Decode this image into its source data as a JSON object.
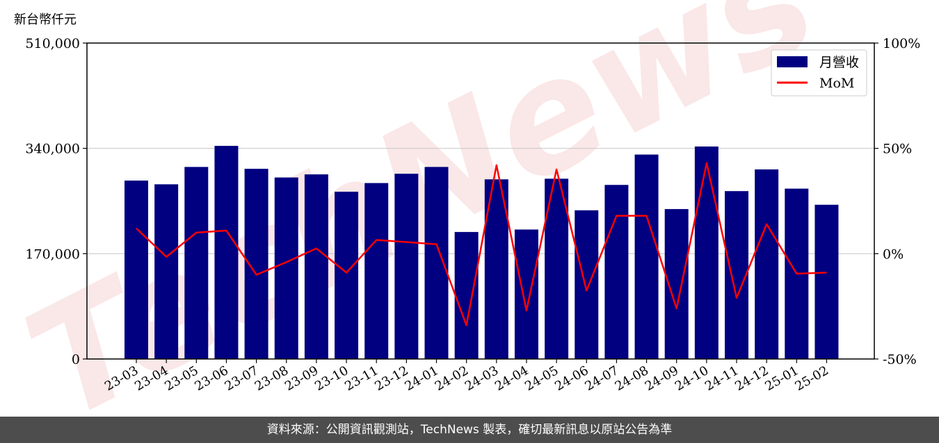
{
  "unit_label": "新台幣仟元",
  "footer_text": "資料來源：公開資訊觀測站，TechNews 製表，確切最新訊息以原站公告為準",
  "watermark": "TechNews",
  "colors": {
    "bar": "#000080",
    "line": "#ff0000",
    "watermark": "#f6d4d4",
    "footer_bg": "#4d4d4d"
  },
  "chart_data": {
    "type": "bar",
    "categories": [
      "23-03",
      "23-04",
      "23-05",
      "23-06",
      "23-07",
      "23-08",
      "23-09",
      "23-10",
      "23-11",
      "23-12",
      "24-01",
      "24-02",
      "24-03",
      "24-04",
      "24-05",
      "24-06",
      "24-07",
      "24-08",
      "24-09",
      "24-10",
      "24-11",
      "24-12",
      "25-01",
      "25-02"
    ],
    "series": [
      {
        "name": "月營收",
        "type": "bar",
        "axis": "left",
        "values": [
          288000,
          282000,
          310000,
          344000,
          307000,
          293000,
          298000,
          270000,
          284000,
          299000,
          310000,
          205000,
          290000,
          209000,
          291000,
          240000,
          281000,
          330000,
          242000,
          343000,
          271000,
          306000,
          275000,
          249000
        ]
      },
      {
        "name": "MoM",
        "type": "line",
        "axis": "right",
        "values": [
          12,
          -1.5,
          10,
          11,
          -10,
          -4,
          2.5,
          -9,
          6.5,
          5.5,
          4.5,
          -34,
          42,
          -27,
          40,
          -17.5,
          18,
          18,
          -26,
          43,
          -21,
          14,
          -9.5,
          -9
        ]
      }
    ],
    "y_left": {
      "ticks": [
        "0",
        "170,000",
        "340,000",
        "510,000"
      ],
      "ylim": [
        0,
        510000
      ]
    },
    "y_right": {
      "ticks": [
        "-50%",
        "0%",
        "50%",
        "100%"
      ],
      "ylim": [
        -50,
        100
      ]
    },
    "grid": "horizontal",
    "legend_position": "top-right"
  }
}
